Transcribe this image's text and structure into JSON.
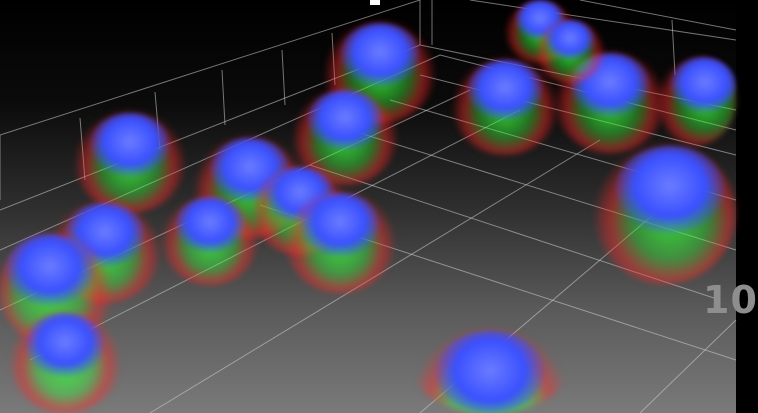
{
  "overlay": {
    "scale_label": "10"
  },
  "colors": {
    "nucleus": "#3a50ff",
    "marker_green": "#3cff3c",
    "marker_red": "#ff2a2a",
    "grid": "#cfcfcf"
  }
}
